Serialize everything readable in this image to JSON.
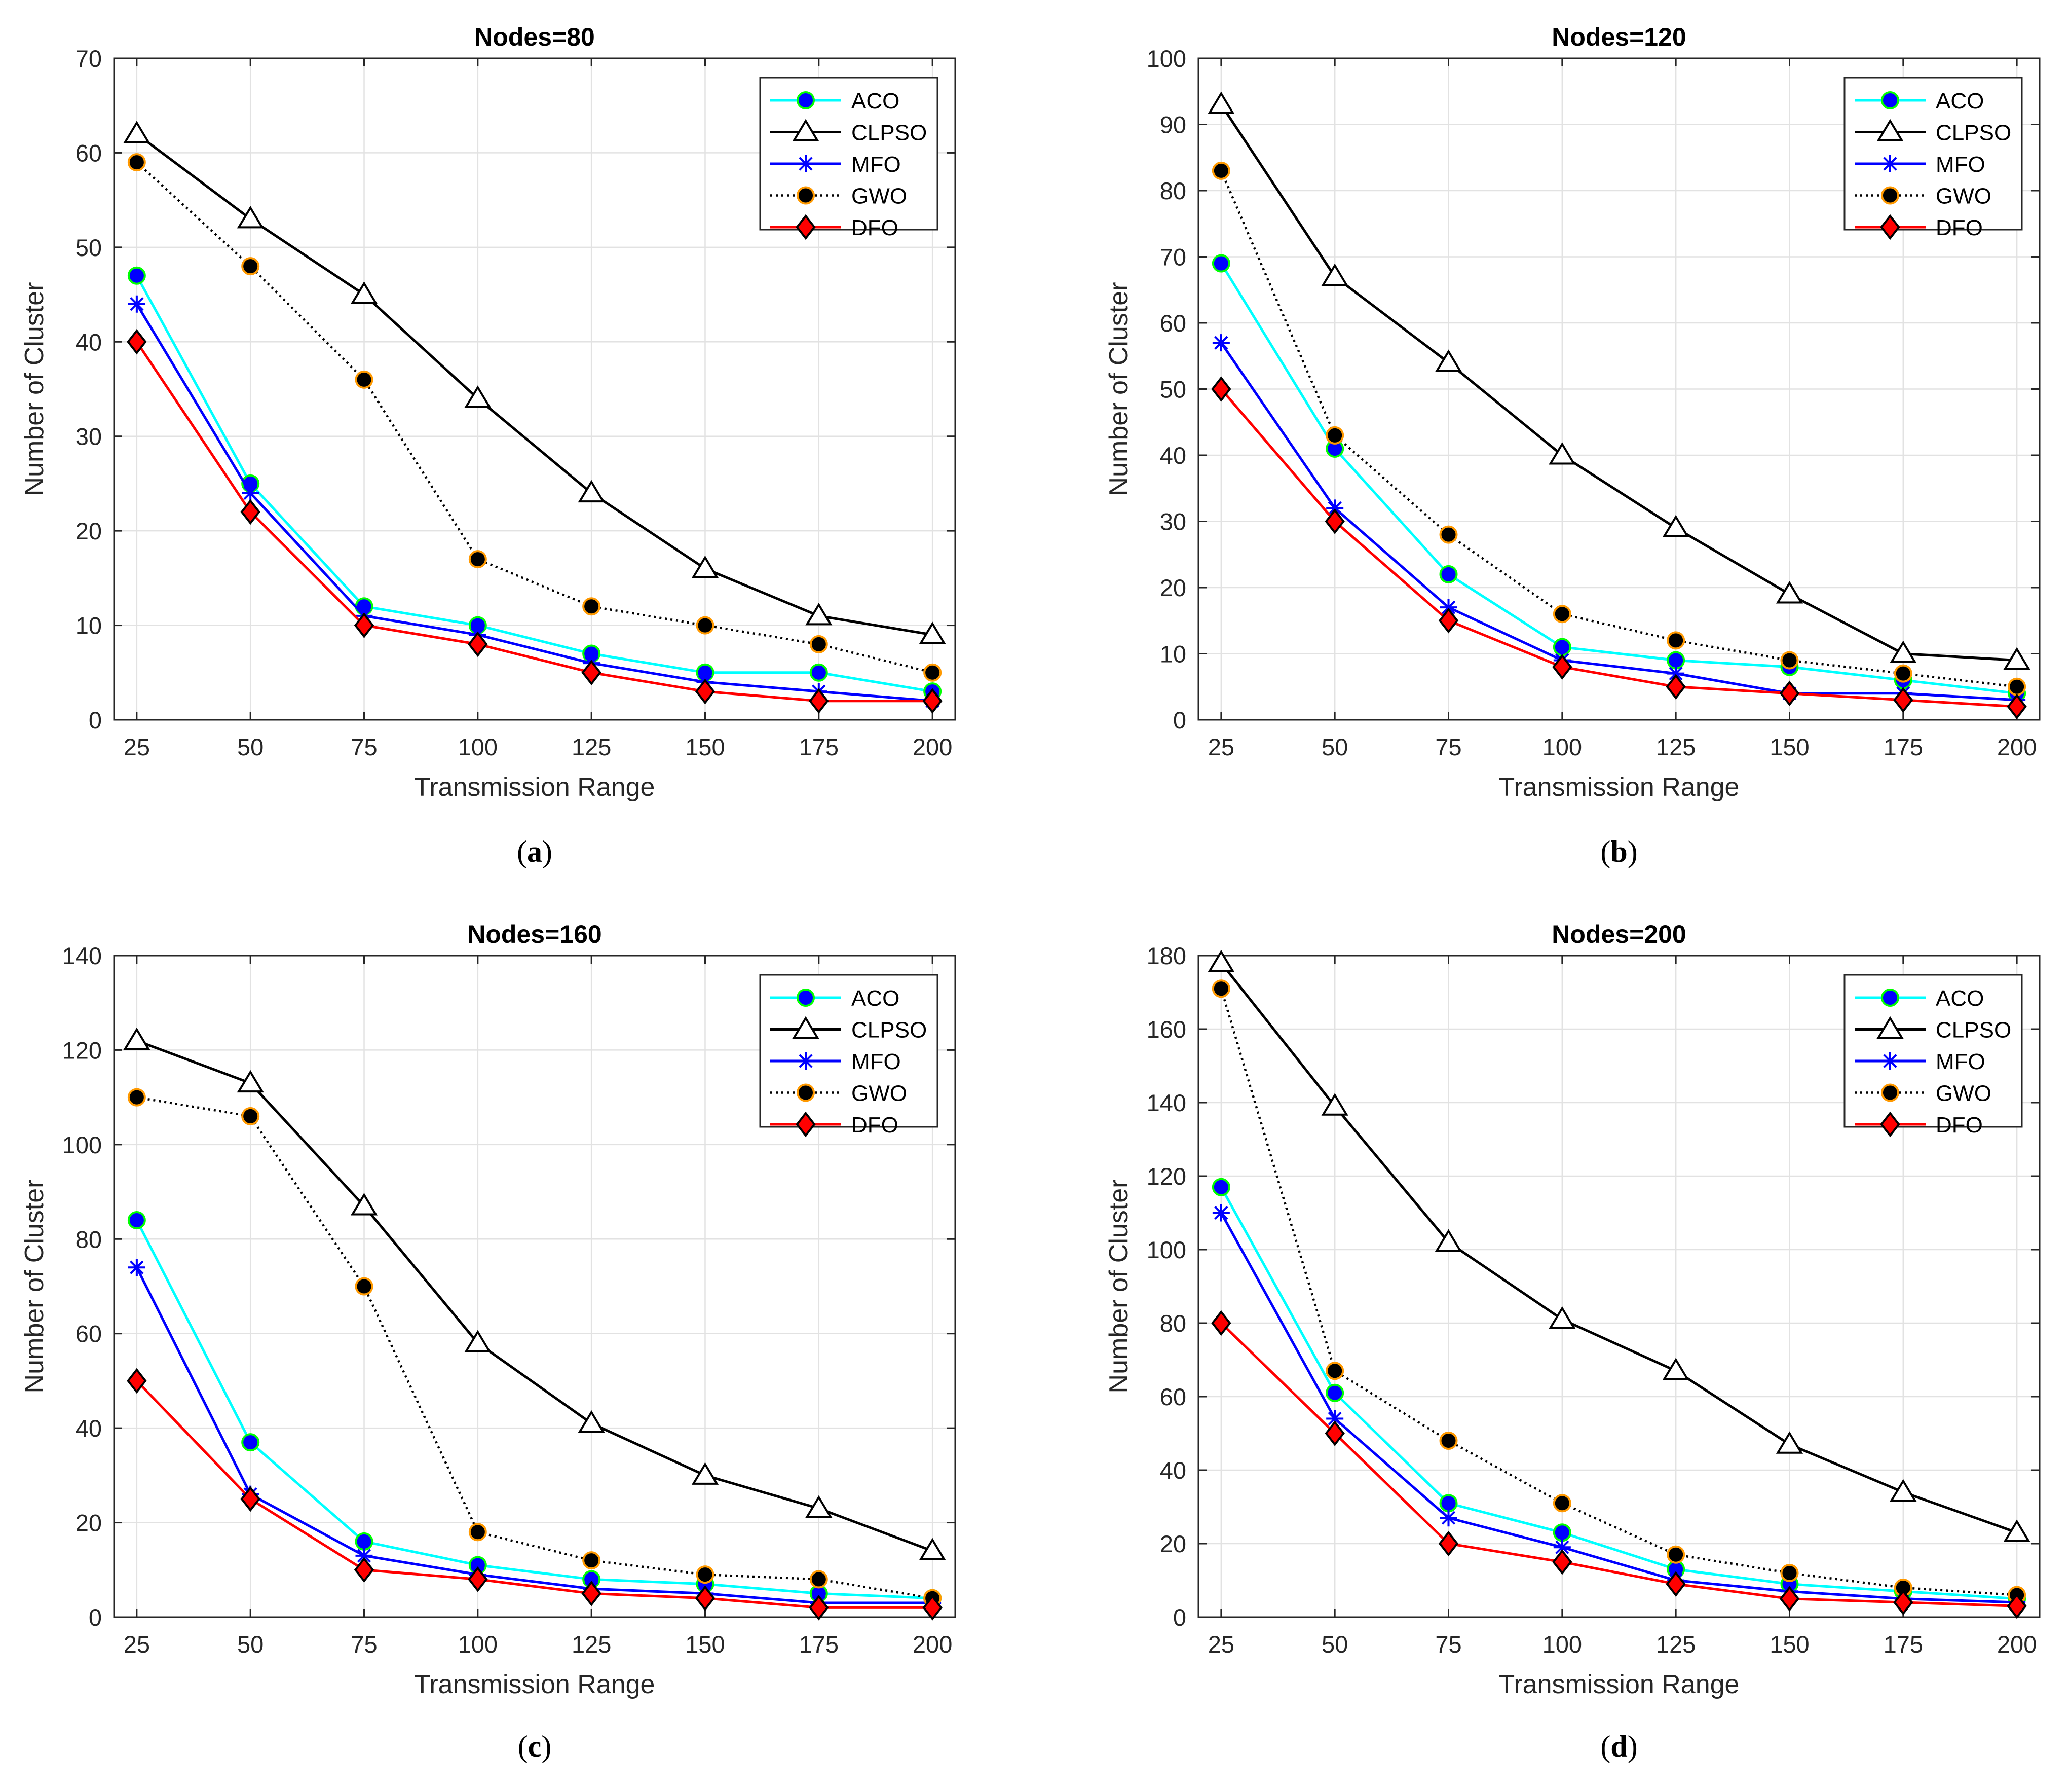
{
  "figure": {
    "x_values": [
      25,
      50,
      75,
      100,
      125,
      150,
      175,
      200
    ],
    "xlabel": "Transmission Range",
    "ylabel": "Number of Cluster",
    "legend_position": "top-right",
    "series_styles": {
      "ACO": {
        "color": "#00ffff",
        "marker": "circle",
        "marker_fill": "#0000ff",
        "marker_edge": "#00ff00",
        "dash": "solid"
      },
      "CLPSO": {
        "color": "#000000",
        "marker": "triangle",
        "marker_fill": "#ffffff",
        "marker_edge": "#000000",
        "dash": "solid"
      },
      "MFO": {
        "color": "#0000ff",
        "marker": "star",
        "marker_fill": "#0000ff",
        "marker_edge": "#0000ff",
        "dash": "solid"
      },
      "GWO": {
        "color": "#000000",
        "marker": "circle",
        "marker_fill": "#000000",
        "marker_edge": "#ff9900",
        "dash": "dotted"
      },
      "DFO": {
        "color": "#ff0000",
        "marker": "diamond",
        "marker_fill": "#ff0000",
        "marker_edge": "#000000",
        "dash": "solid"
      }
    }
  },
  "chart_data": [
    {
      "id": "a",
      "type": "line",
      "title": "Nodes=80",
      "caption_letter": "a",
      "xlabel": "Transmission Range",
      "ylabel": "Number of Cluster",
      "x": [
        25,
        50,
        75,
        100,
        125,
        150,
        175,
        200
      ],
      "xlim": [
        20,
        205
      ],
      "ylim": [
        0,
        70
      ],
      "yticks": [
        0,
        10,
        20,
        30,
        40,
        50,
        60,
        70
      ],
      "grid": true,
      "series": [
        {
          "name": "ACO",
          "values": [
            47,
            25,
            12,
            10,
            7,
            5,
            5,
            3
          ]
        },
        {
          "name": "CLPSO",
          "values": [
            62,
            53,
            45,
            34,
            24,
            16,
            11,
            9
          ]
        },
        {
          "name": "MFO",
          "values": [
            44,
            24,
            11,
            9,
            6,
            4,
            3,
            2
          ]
        },
        {
          "name": "GWO",
          "values": [
            59,
            48,
            36,
            17,
            12,
            10,
            8,
            5
          ]
        },
        {
          "name": "DFO",
          "values": [
            40,
            22,
            10,
            8,
            5,
            3,
            2,
            2
          ]
        }
      ]
    },
    {
      "id": "b",
      "type": "line",
      "title": "Nodes=120",
      "caption_letter": "b",
      "xlabel": "Transmission Range",
      "ylabel": "Number of Cluster",
      "x": [
        25,
        50,
        75,
        100,
        125,
        150,
        175,
        200
      ],
      "xlim": [
        20,
        205
      ],
      "ylim": [
        0,
        100
      ],
      "yticks": [
        0,
        10,
        20,
        30,
        40,
        50,
        60,
        70,
        80,
        90,
        100
      ],
      "grid": true,
      "series": [
        {
          "name": "ACO",
          "values": [
            69,
            41,
            22,
            11,
            9,
            8,
            6,
            4
          ]
        },
        {
          "name": "CLPSO",
          "values": [
            93,
            67,
            54,
            40,
            29,
            19,
            10,
            9
          ]
        },
        {
          "name": "MFO",
          "values": [
            57,
            32,
            17,
            9,
            7,
            4,
            4,
            3
          ]
        },
        {
          "name": "GWO",
          "values": [
            83,
            43,
            28,
            16,
            12,
            9,
            7,
            5
          ]
        },
        {
          "name": "DFO",
          "values": [
            50,
            30,
            15,
            8,
            5,
            4,
            3,
            2
          ]
        }
      ]
    },
    {
      "id": "c",
      "type": "line",
      "title": "Nodes=160",
      "caption_letter": "c",
      "xlabel": "Transmission Range",
      "ylabel": "Number of Cluster",
      "x": [
        25,
        50,
        75,
        100,
        125,
        150,
        175,
        200
      ],
      "xlim": [
        20,
        205
      ],
      "ylim": [
        0,
        140
      ],
      "yticks": [
        0,
        20,
        40,
        60,
        80,
        100,
        120,
        140
      ],
      "grid": true,
      "series": [
        {
          "name": "ACO",
          "values": [
            84,
            37,
            16,
            11,
            8,
            7,
            5,
            4
          ]
        },
        {
          "name": "CLPSO",
          "values": [
            122,
            113,
            87,
            58,
            41,
            30,
            23,
            14
          ]
        },
        {
          "name": "MFO",
          "values": [
            74,
            26,
            13,
            9,
            6,
            5,
            3,
            3
          ]
        },
        {
          "name": "GWO",
          "values": [
            110,
            106,
            70,
            18,
            12,
            9,
            8,
            4
          ]
        },
        {
          "name": "DFO",
          "values": [
            50,
            25,
            10,
            8,
            5,
            4,
            2,
            2
          ]
        }
      ]
    },
    {
      "id": "d",
      "type": "line",
      "title": "Nodes=200",
      "caption_letter": "d",
      "xlabel": "Transmission Range",
      "ylabel": "Number of Cluster",
      "x": [
        25,
        50,
        75,
        100,
        125,
        150,
        175,
        200
      ],
      "xlim": [
        20,
        205
      ],
      "ylim": [
        0,
        180
      ],
      "yticks": [
        0,
        20,
        40,
        60,
        80,
        100,
        120,
        140,
        160,
        180
      ],
      "grid": true,
      "series": [
        {
          "name": "ACO",
          "values": [
            117,
            61,
            31,
            23,
            13,
            9,
            7,
            5
          ]
        },
        {
          "name": "CLPSO",
          "values": [
            178,
            139,
            102,
            81,
            67,
            47,
            34,
            23
          ]
        },
        {
          "name": "MFO",
          "values": [
            110,
            54,
            27,
            19,
            10,
            7,
            5,
            4
          ]
        },
        {
          "name": "GWO",
          "values": [
            171,
            67,
            48,
            31,
            17,
            12,
            8,
            6
          ]
        },
        {
          "name": "DFO",
          "values": [
            80,
            50,
            20,
            15,
            9,
            5,
            4,
            3
          ]
        }
      ]
    }
  ]
}
